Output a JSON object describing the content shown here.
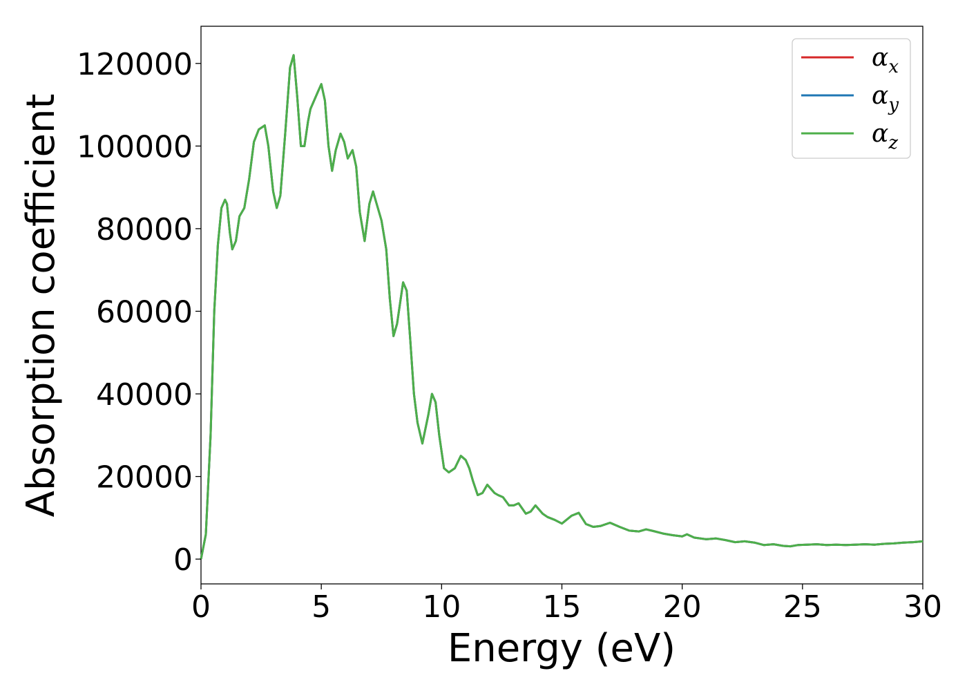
{
  "chart_data": {
    "type": "line",
    "title": "",
    "xlabel": "Energy (eV)",
    "ylabel": "Absorption coefficient",
    "xlim": [
      0,
      30
    ],
    "ylim": [
      -6000,
      129000
    ],
    "x_ticks": [
      0,
      5,
      10,
      15,
      20,
      25,
      30
    ],
    "y_ticks": [
      0,
      20000,
      40000,
      60000,
      80000,
      100000,
      120000
    ],
    "grid": false,
    "legend_position": "top-right",
    "series": [
      {
        "name": "α",
        "subscript": "x",
        "color": "#d62728",
        "ref": "z"
      },
      {
        "name": "α",
        "subscript": "y",
        "color": "#1f77b4",
        "ref": "z"
      },
      {
        "name": "α",
        "subscript": "z",
        "color": "#4daf4a",
        "ref": "z"
      }
    ],
    "x": [
      0,
      0.2,
      0.4,
      0.55,
      0.7,
      0.85,
      1.0,
      1.08,
      1.2,
      1.3,
      1.45,
      1.6,
      1.8,
      2.0,
      2.2,
      2.4,
      2.65,
      2.8,
      3.0,
      3.15,
      3.3,
      3.5,
      3.7,
      3.85,
      4.0,
      4.15,
      4.3,
      4.45,
      4.55,
      4.7,
      4.85,
      5.0,
      5.15,
      5.3,
      5.45,
      5.6,
      5.8,
      5.95,
      6.1,
      6.3,
      6.45,
      6.6,
      6.8,
      7.0,
      7.15,
      7.3,
      7.5,
      7.7,
      7.85,
      8.0,
      8.15,
      8.4,
      8.55,
      8.7,
      8.85,
      9.0,
      9.2,
      9.45,
      9.6,
      9.75,
      9.9,
      10.1,
      10.3,
      10.55,
      10.8,
      11.0,
      11.15,
      11.3,
      11.5,
      11.7,
      11.9,
      12.2,
      12.35,
      12.55,
      12.8,
      13.0,
      13.2,
      13.5,
      13.7,
      13.9,
      14.2,
      14.4,
      14.7,
      15.0,
      15.4,
      15.7,
      16.0,
      16.3,
      16.6,
      17.0,
      17.4,
      17.8,
      18.2,
      18.5,
      18.8,
      19.2,
      19.6,
      20.0,
      20.2,
      20.5,
      21.0,
      21.4,
      21.8,
      22.2,
      22.6,
      23.0,
      23.4,
      23.8,
      24.2,
      24.5,
      24.8,
      25.2,
      25.6,
      26.0,
      26.4,
      26.8,
      27.2,
      27.6,
      28.0,
      28.4,
      28.8,
      29.2,
      29.6,
      30.0
    ],
    "y": [
      0,
      6000,
      30000,
      60000,
      76000,
      85000,
      87000,
      86000,
      79000,
      75000,
      77000,
      83000,
      85000,
      92000,
      101000,
      104000,
      105000,
      100000,
      89000,
      85000,
      88000,
      103000,
      119000,
      122000,
      112000,
      100000,
      100000,
      106000,
      109000,
      111000,
      113000,
      115000,
      111000,
      100000,
      94000,
      99000,
      103000,
      101000,
      97000,
      99000,
      95000,
      84000,
      77000,
      86000,
      89000,
      86000,
      82000,
      75000,
      63000,
      54000,
      57000,
      67000,
      65000,
      53000,
      40000,
      33000,
      28000,
      35000,
      40000,
      38000,
      30000,
      22000,
      21000,
      22000,
      25000,
      24000,
      22000,
      19000,
      15500,
      16000,
      18000,
      16000,
      15500,
      15000,
      13000,
      13000,
      13500,
      11000,
      11500,
      13000,
      11000,
      10200,
      9500,
      8600,
      10500,
      11200,
      8500,
      7800,
      8000,
      8800,
      7800,
      6900,
      6700,
      7200,
      6800,
      6200,
      5800,
      5500,
      6000,
      5200,
      4800,
      5000,
      4600,
      4100,
      4300,
      4000,
      3400,
      3600,
      3200,
      3100,
      3400,
      3500,
      3600,
      3400,
      3500,
      3400,
      3500,
      3600,
      3500,
      3700,
      3800,
      4000,
      4100,
      4300
    ]
  }
}
